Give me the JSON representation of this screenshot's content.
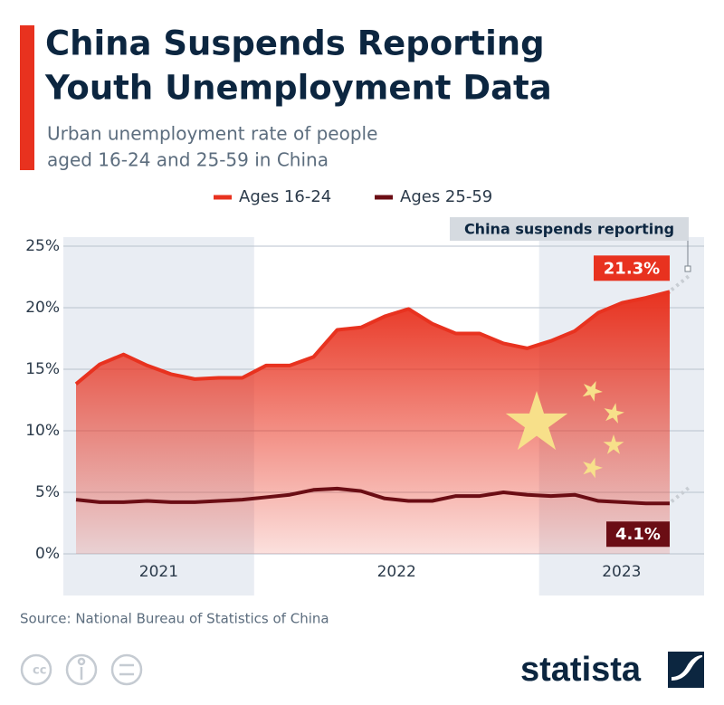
{
  "title": [
    "China Suspends Reporting",
    "Youth Unemployment Data"
  ],
  "subtitle": [
    "Urban unemployment rate of people",
    "aged 16-24 and 25-59 in China"
  ],
  "chart_data": {
    "type": "area-line",
    "categories": [
      "2021",
      "2021",
      "2021",
      "2021",
      "2021",
      "2021",
      "2021",
      "2021",
      "2022",
      "2022",
      "2022",
      "2022",
      "2022",
      "2022",
      "2022",
      "2022",
      "2022",
      "2022",
      "2022",
      "2022",
      "2023",
      "2023",
      "2023",
      "2023",
      "2023",
      "2023"
    ],
    "series": [
      {
        "name": "Ages 16-24",
        "color": "#e8321f",
        "values": [
          13.8,
          15.4,
          16.2,
          15.3,
          14.6,
          14.2,
          14.3,
          14.3,
          15.3,
          15.3,
          16.0,
          18.2,
          18.4,
          19.3,
          19.9,
          18.7,
          17.9,
          17.9,
          17.1,
          16.7,
          17.3,
          18.1,
          19.6,
          20.4,
          20.8,
          21.3
        ],
        "value_labels": [
          null,
          null,
          null,
          null,
          null,
          null,
          null,
          null,
          null,
          null,
          null,
          null,
          null,
          null,
          null,
          null,
          null,
          null,
          null,
          null,
          null,
          null,
          null,
          null,
          null,
          "21.3%"
        ]
      },
      {
        "name": "Ages 25-59",
        "color": "#6b0d14",
        "values": [
          4.4,
          4.2,
          4.2,
          4.3,
          4.2,
          4.2,
          4.3,
          4.4,
          4.6,
          4.8,
          5.2,
          5.3,
          5.1,
          4.5,
          4.3,
          4.3,
          4.7,
          4.7,
          5.0,
          4.8,
          4.7,
          4.8,
          4.3,
          4.2,
          4.1,
          4.1
        ],
        "value_labels": [
          null,
          null,
          null,
          null,
          null,
          null,
          null,
          null,
          null,
          null,
          null,
          null,
          null,
          null,
          null,
          null,
          null,
          null,
          null,
          null,
          null,
          null,
          null,
          null,
          null,
          "4.1%"
        ]
      }
    ],
    "ylim": [
      0,
      25
    ],
    "yticks": [
      {
        "value": 0,
        "label": "0%"
      },
      {
        "value": 5,
        "label": "5%"
      },
      {
        "value": 10,
        "label": "10%"
      },
      {
        "value": 15,
        "label": "15%"
      },
      {
        "value": 20,
        "label": "20%"
      },
      {
        "value": 25,
        "label": "25%"
      }
    ],
    "grid": true,
    "annotation": "China suspends reporting"
  },
  "source": "Source: National Bureau of Statistics of China",
  "brand": "statista"
}
